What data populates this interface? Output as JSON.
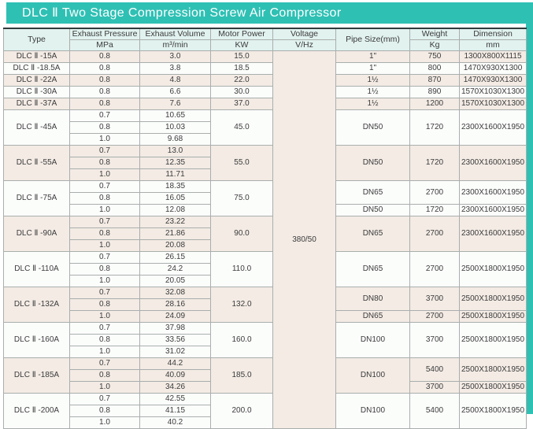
{
  "title": "DLC Ⅱ Two Stage Compression Screw Air Compressor",
  "colors": {
    "accent_teal": "#2fc0b4",
    "header_bg": "#e1f2ef",
    "row_beige": "#f3ebe4",
    "row_white": "#fbfdfb",
    "grid_line": "#a9aeac",
    "top_border": "#333b3a",
    "text": "#3b3b3b",
    "title_text": "#ffffff"
  },
  "table": {
    "headers": {
      "type": "Type",
      "exhaust_pressure": "Exhaust Pressure",
      "exhaust_pressure_unit": "MPa",
      "exhaust_volume": "Exhaust Volume",
      "exhaust_volume_unit": "m³/min",
      "motor_power": "Motor Power",
      "motor_power_unit": "KW",
      "voltage": "Voltage",
      "voltage_unit": "V/Hz",
      "pipe_size": "Pipe Size(mm)",
      "weight": "Weight",
      "weight_unit": "Kg",
      "dimension": "Dimension",
      "dimension_unit": "mm"
    },
    "voltage_value": "380/50",
    "blocks": [
      {
        "type": "DLC Ⅱ -15A",
        "shade": "beige",
        "rows": [
          {
            "mpa": "0.8",
            "volume": "3.0"
          }
        ],
        "power": "15.0",
        "pipe": [
          {
            "span": 1,
            "value": "1\""
          }
        ],
        "weight": [
          {
            "span": 1,
            "value": "750"
          }
        ],
        "dimension": [
          {
            "span": 1,
            "value": "1300X800X1115"
          }
        ]
      },
      {
        "type": "DLC Ⅱ -18.5A",
        "shade": "white",
        "rows": [
          {
            "mpa": "0.8",
            "volume": "3.8"
          }
        ],
        "power": "18.5",
        "pipe": [
          {
            "span": 1,
            "value": "1\""
          }
        ],
        "weight": [
          {
            "span": 1,
            "value": "800"
          }
        ],
        "dimension": [
          {
            "span": 1,
            "value": "1470X930X1300"
          }
        ]
      },
      {
        "type": "DLC Ⅱ -22A",
        "shade": "beige",
        "rows": [
          {
            "mpa": "0.8",
            "volume": "4.8"
          }
        ],
        "power": "22.0",
        "pipe": [
          {
            "span": 1,
            "value": "1½"
          }
        ],
        "weight": [
          {
            "span": 1,
            "value": "870"
          }
        ],
        "dimension": [
          {
            "span": 1,
            "value": "1470X930X1300"
          }
        ]
      },
      {
        "type": "DLC Ⅱ -30A",
        "shade": "white",
        "rows": [
          {
            "mpa": "0.8",
            "volume": "6.6"
          }
        ],
        "power": "30.0",
        "pipe": [
          {
            "span": 1,
            "value": "1½"
          }
        ],
        "weight": [
          {
            "span": 1,
            "value": "890"
          }
        ],
        "dimension": [
          {
            "span": 1,
            "value": "1570X1030X1300"
          }
        ]
      },
      {
        "type": "DLC Ⅱ -37A",
        "shade": "beige",
        "rows": [
          {
            "mpa": "0.8",
            "volume": "7.6"
          }
        ],
        "power": "37.0",
        "pipe": [
          {
            "span": 1,
            "value": "1½"
          }
        ],
        "weight": [
          {
            "span": 1,
            "value": "1200"
          }
        ],
        "dimension": [
          {
            "span": 1,
            "value": "1570X1030X1300"
          }
        ]
      },
      {
        "type": "DLC Ⅱ -45A",
        "shade": "white",
        "rows": [
          {
            "mpa": "0.7",
            "volume": "10.65"
          },
          {
            "mpa": "0.8",
            "volume": "10.03"
          },
          {
            "mpa": "1.0",
            "volume": "9.68"
          }
        ],
        "power": "45.0",
        "pipe": [
          {
            "span": 3,
            "value": "DN50"
          }
        ],
        "weight": [
          {
            "span": 3,
            "value": "1720"
          }
        ],
        "dimension": [
          {
            "span": 3,
            "value": "2300X1600X1950"
          }
        ]
      },
      {
        "type": "DLC Ⅱ -55A",
        "shade": "beige",
        "rows": [
          {
            "mpa": "0.7",
            "volume": "13.0"
          },
          {
            "mpa": "0.8",
            "volume": "12.35"
          },
          {
            "mpa": "1.0",
            "volume": "11.71"
          }
        ],
        "power": "55.0",
        "pipe": [
          {
            "span": 3,
            "value": "DN50"
          }
        ],
        "weight": [
          {
            "span": 3,
            "value": "1720"
          }
        ],
        "dimension": [
          {
            "span": 3,
            "value": "2300X1600X1950"
          }
        ]
      },
      {
        "type": "DLC Ⅱ -75A",
        "shade": "white",
        "rows": [
          {
            "mpa": "0.7",
            "volume": "18.35"
          },
          {
            "mpa": "0.8",
            "volume": "16.05"
          },
          {
            "mpa": "1.0",
            "volume": "12.08"
          }
        ],
        "power": "75.0",
        "pipe": [
          {
            "span": 2,
            "value": "DN65"
          },
          {
            "span": 1,
            "value": "DN50"
          }
        ],
        "weight": [
          {
            "span": 2,
            "value": "2700"
          },
          {
            "span": 1,
            "value": "1720"
          }
        ],
        "dimension": [
          {
            "span": 2,
            "value": "2300X1600X1950"
          },
          {
            "span": 1,
            "value": "2300X1600X1950"
          }
        ]
      },
      {
        "type": "DLC Ⅱ -90A",
        "shade": "beige",
        "rows": [
          {
            "mpa": "0.7",
            "volume": "23.22"
          },
          {
            "mpa": "0.8",
            "volume": "21.86"
          },
          {
            "mpa": "1.0",
            "volume": "20.08"
          }
        ],
        "power": "90.0",
        "pipe": [
          {
            "span": 3,
            "value": "DN65"
          }
        ],
        "weight": [
          {
            "span": 3,
            "value": "2700"
          }
        ],
        "dimension": [
          {
            "span": 3,
            "value": "2300X1600X1950"
          }
        ]
      },
      {
        "type": "DLC Ⅱ -110A",
        "shade": "white",
        "rows": [
          {
            "mpa": "0.7",
            "volume": "26.15"
          },
          {
            "mpa": "0.8",
            "volume": "24.2"
          },
          {
            "mpa": "1.0",
            "volume": "20.05"
          }
        ],
        "power": "110.0",
        "pipe": [
          {
            "span": 3,
            "value": "DN65"
          }
        ],
        "weight": [
          {
            "span": 3,
            "value": "2700"
          }
        ],
        "dimension": [
          {
            "span": 3,
            "value": "2500X1800X1950"
          }
        ]
      },
      {
        "type": "DLC Ⅱ -132A",
        "shade": "beige",
        "rows": [
          {
            "mpa": "0.7",
            "volume": "32.08"
          },
          {
            "mpa": "0.8",
            "volume": "28.16"
          },
          {
            "mpa": "1.0",
            "volume": "24.09"
          }
        ],
        "power": "132.0",
        "pipe": [
          {
            "span": 2,
            "value": "DN80"
          },
          {
            "span": 1,
            "value": "DN65"
          }
        ],
        "weight": [
          {
            "span": 2,
            "value": "3700"
          },
          {
            "span": 1,
            "value": "2700"
          }
        ],
        "dimension": [
          {
            "span": 2,
            "value": "2500X1800X1950"
          },
          {
            "span": 1,
            "value": "2500X1800X1950"
          }
        ]
      },
      {
        "type": "DLC Ⅱ -160A",
        "shade": "white",
        "rows": [
          {
            "mpa": "0.7",
            "volume": "37.98"
          },
          {
            "mpa": "0.8",
            "volume": "33.56"
          },
          {
            "mpa": "1.0",
            "volume": "31.02"
          }
        ],
        "power": "160.0",
        "pipe": [
          {
            "span": 3,
            "value": "DN100"
          }
        ],
        "weight": [
          {
            "span": 3,
            "value": "3700"
          }
        ],
        "dimension": [
          {
            "span": 3,
            "value": "2500X1800X1950"
          }
        ]
      },
      {
        "type": "DLC Ⅱ -185A",
        "shade": "beige",
        "rows": [
          {
            "mpa": "0.7",
            "volume": "44.2"
          },
          {
            "mpa": "0.8",
            "volume": "40.09"
          },
          {
            "mpa": "1.0",
            "volume": "34.26"
          }
        ],
        "power": "185.0",
        "pipe": [
          {
            "span": 3,
            "value": "DN100"
          }
        ],
        "weight": [
          {
            "span": 2,
            "value": "5400"
          },
          {
            "span": 1,
            "value": "3700"
          }
        ],
        "dimension": [
          {
            "span": 2,
            "value": "2500X1800X1950"
          },
          {
            "span": 1,
            "value": "2500X1800X1950"
          }
        ]
      },
      {
        "type": "DLC Ⅱ -200A",
        "shade": "white",
        "rows": [
          {
            "mpa": "0.7",
            "volume": "42.55"
          },
          {
            "mpa": "0.8",
            "volume": "41.15"
          },
          {
            "mpa": "1.0",
            "volume": "40.2"
          }
        ],
        "power": "200.0",
        "pipe": [
          {
            "span": 3,
            "value": "DN100"
          }
        ],
        "weight": [
          {
            "span": 3,
            "value": "5400"
          }
        ],
        "dimension": [
          {
            "span": 3,
            "value": "2500X1800X1950"
          }
        ]
      }
    ]
  }
}
